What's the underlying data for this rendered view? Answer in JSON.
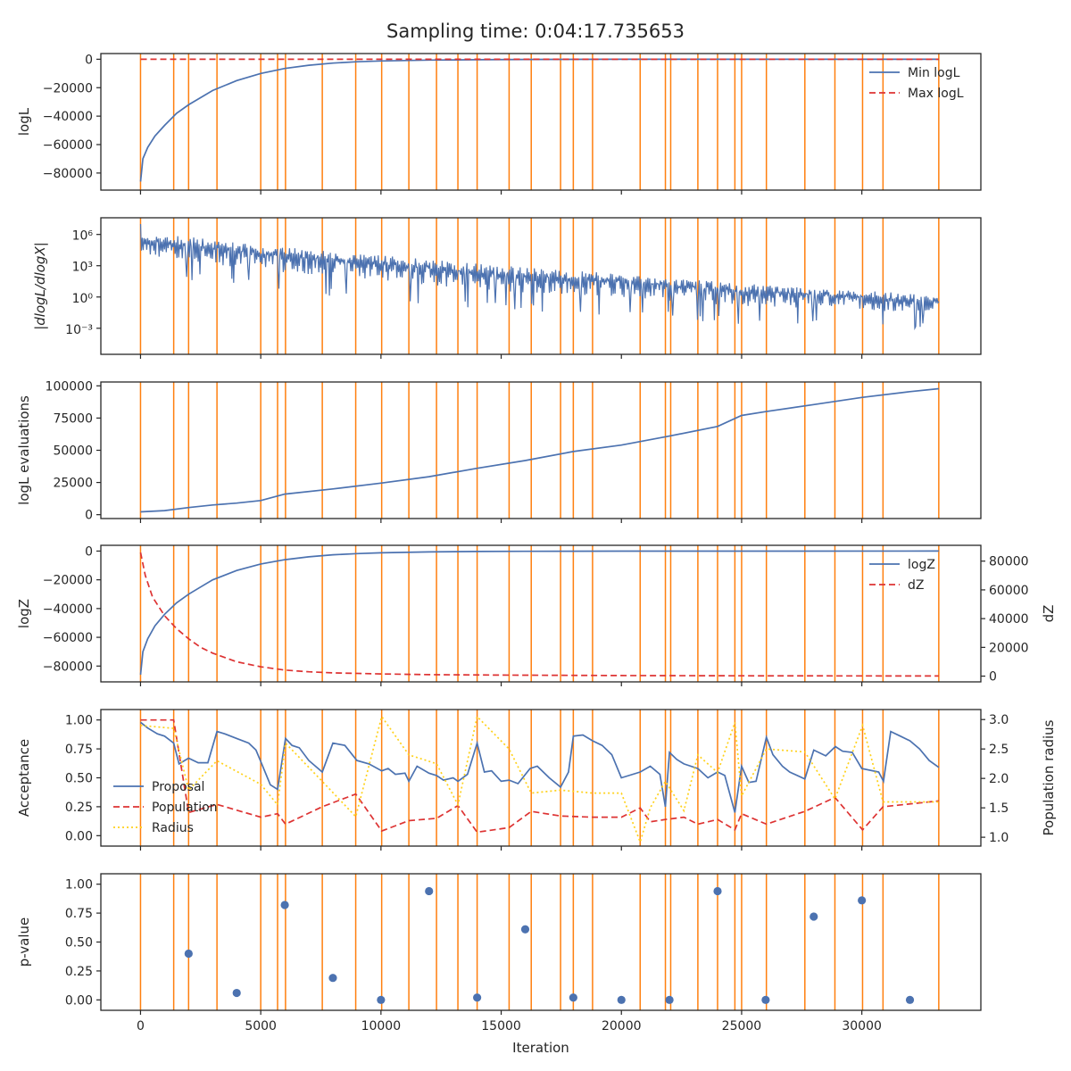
{
  "figure": {
    "title": "Sampling time: 0:04:17.735653"
  },
  "colors": {
    "blue": "#4c72b0",
    "red": "#dd3333",
    "orange": "#ff7f0e",
    "yellow": "#ffd11a",
    "axis": "#262626"
  },
  "chart_data": [
    {
      "id": "logl",
      "type": "line",
      "ylabel": "logL",
      "xlim": [
        -1650,
        34950
      ],
      "ylim": [
        -92000,
        4000
      ],
      "yticks": [
        0,
        -20000,
        -40000,
        -60000,
        -80000
      ],
      "ytick_labels": [
        "0",
        "−20000",
        "−40000",
        "−60000",
        "−80000"
      ],
      "legend": {
        "position": "top-right",
        "entries": [
          "Min logL",
          "Max logL"
        ]
      },
      "series": [
        {
          "name": "Min logL",
          "style": "solid",
          "color": "blue",
          "x": [
            0,
            100,
            300,
            600,
            1000,
            1500,
            2000,
            2500,
            3000,
            4000,
            5000,
            6000,
            7000,
            8000,
            9000,
            10000,
            12000,
            14000,
            16000,
            18000,
            20000,
            25000,
            30000,
            33200
          ],
          "y": [
            -86000,
            -70000,
            -62000,
            -54000,
            -46500,
            -38000,
            -32000,
            -27000,
            -22000,
            -15000,
            -10000,
            -6500,
            -4200,
            -2700,
            -1800,
            -1200,
            -600,
            -300,
            -150,
            -80,
            -40,
            -10,
            -3,
            0
          ]
        },
        {
          "name": "Max logL",
          "style": "dashed",
          "color": "red",
          "x": [
            0,
            33200
          ],
          "y": [
            0,
            0
          ]
        }
      ]
    },
    {
      "id": "dlogl",
      "type": "line",
      "ylabel": "|dlogL/dlogX|",
      "yscale": "log",
      "ylim_log10": [
        -5.5,
        7.6
      ],
      "yticks_log10": [
        6,
        3,
        0,
        -3
      ],
      "ytick_labels": [
        "10⁶",
        "10³",
        "10⁰",
        "10⁻³"
      ],
      "series": [
        {
          "name": "",
          "style": "noisy",
          "color": "blue",
          "x": [
            0,
            5000,
            10000,
            15000,
            20000,
            25000,
            30000,
            33200
          ],
          "y_log10_upper": [
            6.3,
            5.0,
            4.0,
            3.0,
            2.2,
            1.3,
            0.6,
            0.2
          ],
          "y_log10_lower": [
            3.0,
            1.5,
            0.5,
            -0.5,
            -1.0,
            -1.8,
            -2.0,
            -2.5
          ]
        }
      ]
    },
    {
      "id": "evals",
      "type": "line",
      "ylabel": "logL evaluations",
      "ylim": [
        -3000,
        103000
      ],
      "yticks": [
        0,
        25000,
        50000,
        75000,
        100000
      ],
      "ytick_labels": [
        "0",
        "25000",
        "50000",
        "75000",
        "100000"
      ],
      "series": [
        {
          "name": "",
          "style": "solid",
          "color": "blue",
          "x": [
            0,
            1000,
            2000,
            3000,
            4000,
            5000,
            6000,
            8000,
            10000,
            12000,
            14000,
            16000,
            18000,
            20000,
            22000,
            24000,
            25000,
            26000,
            28000,
            30000,
            32000,
            33200
          ],
          "y": [
            2200,
            3200,
            5500,
            7500,
            9000,
            11000,
            16000,
            20000,
            24500,
            29500,
            36000,
            42000,
            49000,
            54000,
            61000,
            68500,
            77000,
            80000,
            85500,
            91000,
            95500,
            97800
          ]
        }
      ]
    },
    {
      "id": "logz",
      "type": "line",
      "ylabel": "logZ",
      "y2label": "dZ",
      "ylim": [
        -91000,
        4000
      ],
      "yticks": [
        0,
        -20000,
        -40000,
        -60000,
        -80000
      ],
      "ytick_labels": [
        "0",
        "−20000",
        "−40000",
        "−60000",
        "−80000"
      ],
      "y2lim": [
        -4000,
        91000
      ],
      "y2ticks": [
        0,
        20000,
        40000,
        60000,
        80000
      ],
      "y2tick_labels": [
        "0",
        "20000",
        "40000",
        "60000",
        "80000"
      ],
      "legend": {
        "position": "top-right",
        "entries": [
          "logZ",
          "dZ"
        ]
      },
      "series": [
        {
          "name": "logZ",
          "style": "solid",
          "color": "blue",
          "axis": "left",
          "x": [
            0,
            100,
            300,
            600,
            1000,
            1500,
            2000,
            2500,
            3000,
            4000,
            5000,
            6000,
            7000,
            8000,
            9000,
            10000,
            12000,
            14000,
            16000,
            20000,
            25000,
            33200
          ],
          "y": [
            -86000,
            -70000,
            -61000,
            -52000,
            -44000,
            -36000,
            -30000,
            -25000,
            -20000,
            -13500,
            -9000,
            -6000,
            -4000,
            -2600,
            -1800,
            -1200,
            -600,
            -300,
            -150,
            -50,
            -10,
            0
          ]
        },
        {
          "name": "dZ",
          "style": "dashed",
          "color": "red",
          "axis": "right",
          "x": [
            0,
            200,
            500,
            1000,
            1500,
            2000,
            2500,
            3000,
            4000,
            5000,
            6000,
            7000,
            8000,
            10000,
            12000,
            15000,
            20000,
            25000,
            33200
          ],
          "y": [
            86000,
            70000,
            55000,
            42000,
            33000,
            26000,
            20000,
            16000,
            10000,
            6500,
            4200,
            3000,
            2300,
            1500,
            1000,
            700,
            400,
            200,
            100
          ]
        }
      ]
    },
    {
      "id": "acceptance",
      "type": "line",
      "ylabel": "Acceptance",
      "y2label": "Population radius",
      "ylim": [
        -0.09,
        1.09
      ],
      "yticks": [
        0,
        0.25,
        0.5,
        0.75,
        1.0
      ],
      "ytick_labels": [
        "0.00",
        "0.25",
        "0.50",
        "0.75",
        "1.00"
      ],
      "y2lim": [
        0.85,
        3.17
      ],
      "y2ticks": [
        1.0,
        1.5,
        2.0,
        2.5,
        3.0
      ],
      "y2tick_labels": [
        "1.0",
        "1.5",
        "2.0",
        "2.5",
        "3.0"
      ],
      "legend": {
        "position": "center-left",
        "entries": [
          "Proposal",
          "Population",
          "Radius"
        ]
      },
      "series": [
        {
          "name": "Proposal",
          "style": "solid",
          "color": "blue",
          "axis": "left",
          "x": [
            0,
            300,
            700,
            1000,
            1380,
            1600,
            2000,
            2400,
            2800,
            3180,
            3500,
            4000,
            4500,
            4800,
            5000,
            5400,
            5700,
            6030,
            6300,
            6600,
            7000,
            7560,
            8000,
            8500,
            9000,
            9500,
            10030,
            10300,
            10600,
            11000,
            11160,
            11500,
            12000,
            12310,
            12600,
            13000,
            13200,
            13600,
            14000,
            14300,
            14600,
            15000,
            15330,
            15700,
            16200,
            16500,
            17000,
            17470,
            17800,
            18000,
            18400,
            18800,
            19200,
            19600,
            20000,
            20780,
            21200,
            21600,
            21830,
            22000,
            22300,
            22600,
            23180,
            23600,
            24000,
            24300,
            24720,
            25000,
            25300,
            25600,
            26030,
            26300,
            26700,
            27000,
            27630,
            28000,
            28500,
            28900,
            29200,
            29600,
            30000,
            30700,
            30900,
            31200,
            31600,
            32000,
            32400,
            32800,
            33200
          ],
          "y": [
            0.98,
            0.93,
            0.88,
            0.86,
            0.8,
            0.62,
            0.67,
            0.63,
            0.63,
            0.9,
            0.88,
            0.84,
            0.8,
            0.74,
            0.64,
            0.44,
            0.4,
            0.84,
            0.78,
            0.76,
            0.65,
            0.55,
            0.8,
            0.78,
            0.65,
            0.62,
            0.56,
            0.58,
            0.53,
            0.54,
            0.47,
            0.6,
            0.54,
            0.52,
            0.48,
            0.5,
            0.47,
            0.53,
            0.8,
            0.55,
            0.56,
            0.47,
            0.48,
            0.45,
            0.58,
            0.6,
            0.5,
            0.42,
            0.55,
            0.86,
            0.87,
            0.82,
            0.78,
            0.7,
            0.5,
            0.55,
            0.6,
            0.53,
            0.25,
            0.72,
            0.66,
            0.62,
            0.58,
            0.5,
            0.55,
            0.52,
            0.2,
            0.6,
            0.46,
            0.47,
            0.85,
            0.7,
            0.6,
            0.55,
            0.49,
            0.74,
            0.69,
            0.77,
            0.73,
            0.72,
            0.58,
            0.55,
            0.47,
            0.9,
            0.86,
            0.82,
            0.75,
            0.65,
            0.59
          ]
        },
        {
          "name": "Population",
          "style": "dashed",
          "color": "red",
          "axis": "left",
          "x": [
            0,
            1380,
            2000,
            3180,
            5000,
            5700,
            6030,
            7560,
            8950,
            10030,
            11160,
            12310,
            13200,
            14000,
            15330,
            16250,
            17470,
            18800,
            20000,
            20780,
            21200,
            21830,
            22600,
            23180,
            24000,
            24720,
            25000,
            26030,
            27630,
            28880,
            30030,
            30880,
            33200
          ],
          "y": [
            1.0,
            1.0,
            0.2,
            0.27,
            0.16,
            0.19,
            0.1,
            0.25,
            0.36,
            0.04,
            0.13,
            0.15,
            0.26,
            0.03,
            0.07,
            0.21,
            0.17,
            0.16,
            0.16,
            0.24,
            0.12,
            0.14,
            0.16,
            0.1,
            0.14,
            0.05,
            0.19,
            0.1,
            0.21,
            0.33,
            0.05,
            0.25,
            0.3
          ]
        },
        {
          "name": "Radius",
          "style": "dotted",
          "color": "yellow",
          "axis": "right",
          "x": [
            0,
            1380,
            2000,
            3180,
            5000,
            5700,
            6030,
            7560,
            8950,
            10030,
            11160,
            12310,
            13200,
            14000,
            15330,
            16250,
            17470,
            18800,
            20000,
            20780,
            21200,
            21830,
            22600,
            23180,
            24000,
            24720,
            25000,
            26030,
            27630,
            28880,
            30030,
            30880,
            33200
          ],
          "y": [
            2.9,
            2.85,
            1.8,
            2.3,
            1.9,
            1.55,
            2.6,
            1.95,
            1.35,
            3.05,
            2.4,
            2.25,
            1.55,
            3.05,
            2.5,
            1.75,
            1.8,
            1.75,
            1.75,
            0.92,
            1.5,
            1.95,
            1.45,
            2.4,
            2.1,
            2.95,
            1.7,
            2.5,
            2.45,
            1.65,
            2.9,
            1.6,
            1.6
          ]
        }
      ]
    },
    {
      "id": "pvalue",
      "type": "scatter",
      "ylabel": "p-value",
      "xlabel": "Iteration",
      "ylim": [
        -0.09,
        1.09
      ],
      "yticks": [
        0,
        0.25,
        0.5,
        0.75,
        1.0
      ],
      "ytick_labels": [
        "0.00",
        "0.25",
        "0.50",
        "0.75",
        "1.00"
      ],
      "xticks": [
        0,
        5000,
        10000,
        15000,
        20000,
        25000,
        30000
      ],
      "xtick_labels": [
        "0",
        "5000",
        "10000",
        "15000",
        "20000",
        "25000",
        "30000"
      ],
      "series": [
        {
          "name": "",
          "color": "blue",
          "x": [
            2000,
            4000,
            6000,
            8000,
            10000,
            12000,
            14000,
            16000,
            18000,
            20000,
            22000,
            24000,
            26000,
            28000,
            30000,
            32000
          ],
          "y": [
            0.4,
            0.06,
            0.82,
            0.19,
            0.0,
            0.94,
            0.02,
            0.61,
            0.02,
            0.0,
            0.0,
            0.94,
            0.0,
            0.72,
            0.86,
            0.0
          ]
        }
      ]
    }
  ],
  "vlines": {
    "color": "orange",
    "x": [
      0,
      1380,
      2000,
      3180,
      5000,
      5700,
      6030,
      7560,
      8950,
      10030,
      11160,
      12310,
      13200,
      14000,
      15330,
      16250,
      17470,
      18000,
      18800,
      20780,
      21830,
      22050,
      23180,
      24000,
      24720,
      25000,
      26030,
      27630,
      28880,
      30030,
      30880,
      33200
    ]
  }
}
